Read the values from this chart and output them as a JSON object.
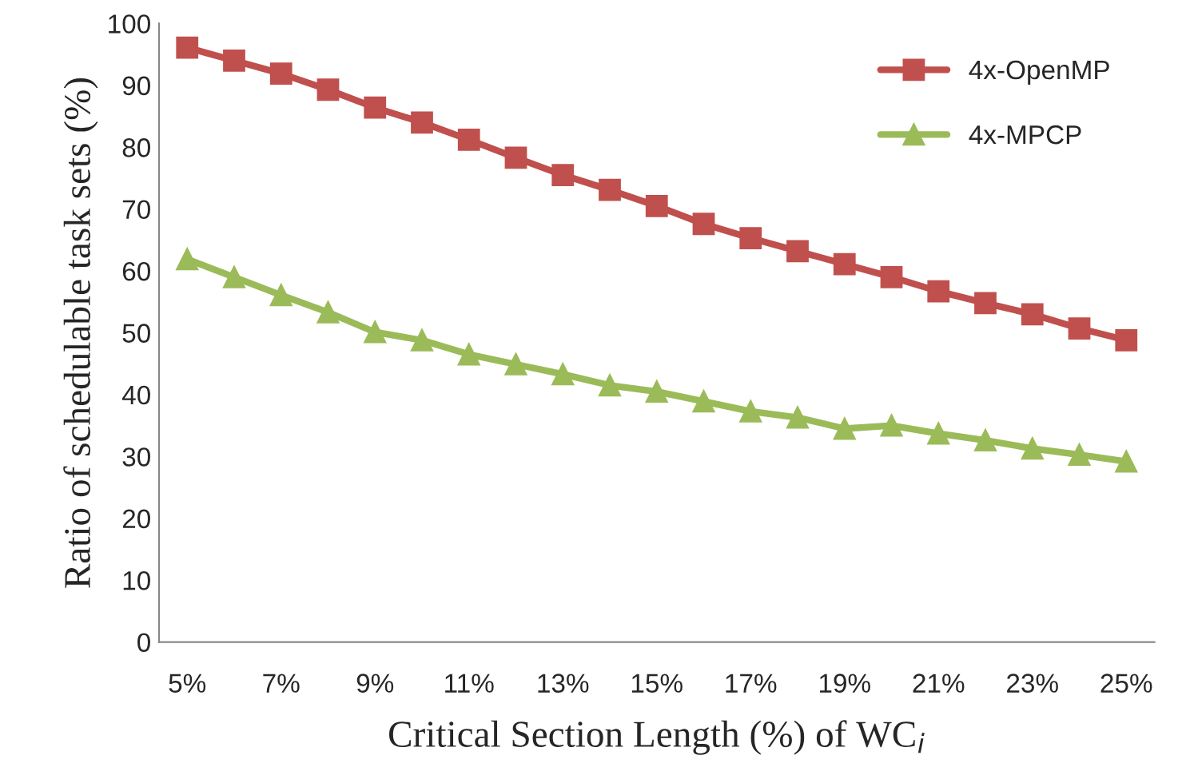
{
  "chart_data": {
    "type": "line",
    "xlabel": "Critical Section Length (%) of WC$_{i}$",
    "ylabel": "Ratio of schedulable task sets (%)",
    "categories": [
      "5%",
      null,
      "7%",
      null,
      "9%",
      null,
      "11%",
      null,
      "13%",
      null,
      "15%",
      null,
      "17%",
      null,
      "19%",
      null,
      "21%",
      null,
      "23%",
      null,
      "25%"
    ],
    "series": [
      {
        "name": "4x-OpenMP",
        "color": "#c0504d",
        "marker": "square",
        "values": [
          96.1,
          94,
          91.9,
          89.3,
          86.4,
          84,
          81.2,
          78.3,
          75.5,
          73.1,
          70.5,
          67.6,
          65.3,
          63.2,
          61.1,
          59,
          56.7,
          54.8,
          53,
          50.7,
          48.8
        ]
      },
      {
        "name": "4x-MPCP",
        "color": "#9bbb59",
        "marker": "triangle",
        "values": [
          61.9,
          59,
          56.1,
          53.3,
          50.1,
          48.8,
          46.5,
          44.9,
          43.3,
          41.5,
          40.5,
          38.9,
          37.3,
          36.3,
          34.5,
          35,
          33.7,
          32.6,
          31.3,
          30.3,
          29.2
        ]
      }
    ],
    "ylim": [
      0,
      100
    ],
    "yticks": [
      0,
      10,
      20,
      30,
      40,
      50,
      60,
      70,
      80,
      90,
      100
    ],
    "grid": false,
    "legend": "top right",
    "line_style": "solid"
  }
}
